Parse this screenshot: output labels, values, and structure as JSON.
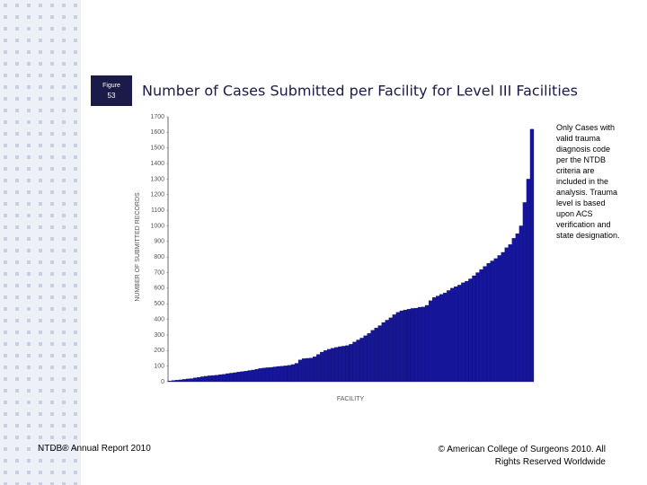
{
  "figure_label": {
    "word": "Figure",
    "number": "53"
  },
  "chart_data": {
    "type": "bar",
    "title": "Number of Cases Submitted per Facility for Level III Facilities",
    "xlabel": "FACILITY",
    "ylabel": "NUMBER OF SUBMITTED RECORDS",
    "color": "#16169a",
    "values": [
      5,
      8,
      10,
      12,
      15,
      18,
      20,
      25,
      28,
      32,
      35,
      38,
      40,
      42,
      45,
      48,
      52,
      55,
      58,
      62,
      65,
      68,
      72,
      75,
      80,
      85,
      88,
      90,
      92,
      95,
      98,
      100,
      102,
      105,
      110,
      118,
      140,
      148,
      150,
      152,
      160,
      175,
      190,
      200,
      208,
      215,
      220,
      225,
      228,
      232,
      240,
      255,
      268,
      280,
      295,
      310,
      330,
      345,
      360,
      380,
      395,
      410,
      430,
      445,
      455,
      460,
      465,
      470,
      472,
      478,
      480,
      490,
      520,
      540,
      550,
      560,
      570,
      585,
      600,
      610,
      620,
      635,
      645,
      660,
      680,
      700,
      720,
      740,
      760,
      775,
      790,
      810,
      830,
      860,
      880,
      920,
      950,
      1000,
      1150,
      1300,
      1620
    ],
    "ylim": [
      0,
      1700
    ],
    "yticks": [
      0,
      100,
      200,
      300,
      400,
      500,
      600,
      700,
      800,
      900,
      1000,
      1100,
      1200,
      1300,
      1400,
      1500,
      1600,
      1700
    ]
  },
  "note": "Only Cases with valid trauma diagnosis code per the NTDB criteria are included in the analysis. Trauma level is based upon ACS verification and state designation.",
  "footer": {
    "left": "NTDB® Annual Report 2010",
    "right": "© American College of Surgeons 2010. All Rights Reserved Worldwide"
  }
}
